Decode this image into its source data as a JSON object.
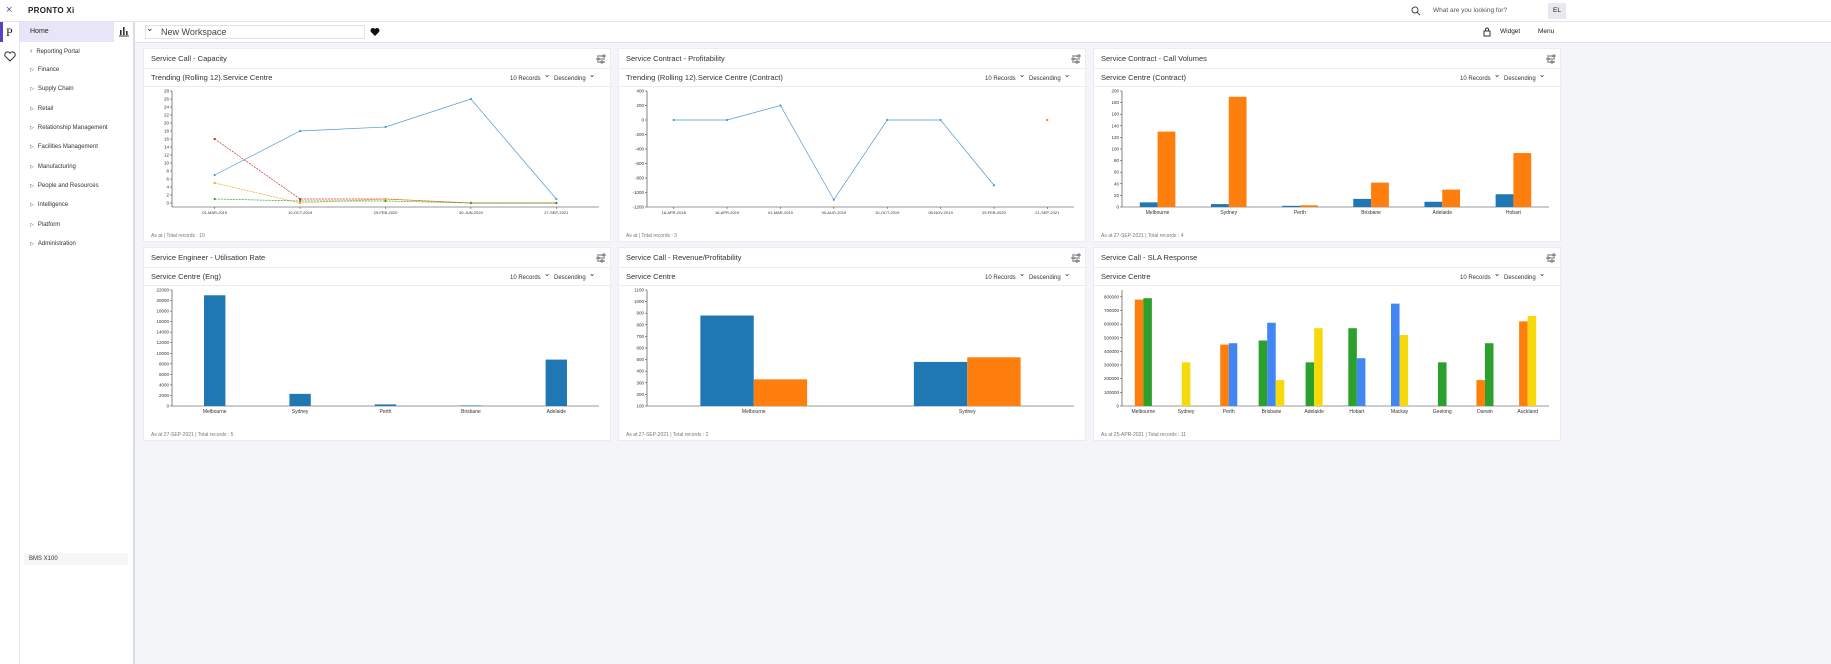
{
  "header": {
    "brand": "PRONTO Xi",
    "search_placeholder": "What are you looking for?",
    "user": "EL"
  },
  "sidebar": {
    "home": "Home",
    "items": [
      "Reporting Portal",
      "Finance",
      "Supply Chain",
      "Retail",
      "Relationship Management",
      "Facilities Management",
      "Manufacturing",
      "People and Resources",
      "Intelligence",
      "Platform",
      "Administration"
    ],
    "footer": "BMS X100"
  },
  "toolbar": {
    "workspace": "New Workspace",
    "widget": "Widget",
    "menu": "Menu"
  },
  "widgets": [
    {
      "title": "Service Call - Capacity",
      "subtitle": "Trending (Rolling 12).Service Centre",
      "records": "10 Records",
      "order": "Descending",
      "footer": "As at | Total records : 10",
      "chart": {
        "type": "line",
        "categories": [
          "01-MAR-2019",
          "10-OCT-2019",
          "29-FEB-2020",
          "30-JUN-2020",
          "27-SEP-2021"
        ],
        "series": [
          {
            "color": "#4a9bd4",
            "values": [
              7,
              18,
              19,
              26,
              1
            ]
          },
          {
            "color": "#d62728",
            "values": [
              16,
              1,
              1,
              0,
              0
            ]
          },
          {
            "color": "#ff9f1c",
            "values": [
              5,
              0,
              1,
              0,
              0
            ]
          },
          {
            "color": "#2ca02c",
            "values": [
              1,
              0.5,
              0.5,
              0,
              0
            ]
          }
        ],
        "ylim": [
          -1,
          28
        ],
        "yticks": [
          0,
          2,
          4,
          6,
          8,
          10,
          12,
          14,
          16,
          18,
          20,
          22,
          24,
          26,
          28
        ]
      }
    },
    {
      "title": "Service Contract - Profitability",
      "subtitle": "Trending (Rolling 12).Service Centre (Contract)",
      "records": "10 Records",
      "order": "Descending",
      "footer": "As at | Total records : 3",
      "chart": {
        "type": "line",
        "categories": [
          "16-APR-2018",
          "16-APR-2019",
          "01-MAR-2019",
          "30-AUG-2019",
          "10-OCT-2019",
          "08-NOV-2019",
          "29-FEB-2020",
          "21-SEP-2021"
        ],
        "series": [
          {
            "color": "#4a9bd4",
            "values": [
              0,
              0,
              200,
              -1100,
              0,
              0,
              -900,
              null
            ]
          },
          {
            "color": "#ff7f0e",
            "values": [
              null,
              null,
              null,
              null,
              null,
              null,
              null,
              0
            ]
          }
        ],
        "ylim": [
          -1200,
          400
        ],
        "yticks": [
          -1200,
          -1000,
          -800,
          -600,
          -400,
          -200,
          0,
          200,
          400
        ]
      }
    },
    {
      "title": "Service Contract - Call Volumes",
      "subtitle": "Service Centre (Contract)",
      "records": "10 Records",
      "order": "Descending",
      "footer": "As at 27-SEP-2021 | Total records : 4",
      "chart": {
        "type": "bar",
        "categories": [
          "Melbourne",
          "Sydney",
          "Perth",
          "Brisbane",
          "Adelaide",
          "Hobart"
        ],
        "series": [
          {
            "color": "#1f77b4",
            "values": [
              8,
              5,
              2,
              14,
              9,
              22
            ]
          },
          {
            "color": "#ff7f0e",
            "values": [
              130,
              190,
              3,
              42,
              30,
              93
            ]
          }
        ],
        "ylim": [
          0,
          200
        ],
        "yticks": [
          0,
          20,
          40,
          60,
          80,
          100,
          120,
          140,
          160,
          180,
          200
        ]
      }
    },
    {
      "title": "Service Engineer - Utilisation Rate",
      "subtitle": "Service Centre (Eng)",
      "records": "10 Records",
      "order": "Descending",
      "footer": "As at 27-SEP-2021 | Total records : 5",
      "chart": {
        "type": "bar",
        "categories": [
          "Melbourne",
          "Sydney",
          "Perth",
          "Brisbane",
          "Adelaide"
        ],
        "series": [
          {
            "color": "#1f77b4",
            "values": [
              21000,
              2300,
              300,
              100,
              8800
            ]
          }
        ],
        "ylim": [
          0,
          22000
        ],
        "yticks": [
          0,
          2000,
          4000,
          6000,
          8000,
          10000,
          12000,
          14000,
          16000,
          18000,
          20000,
          22000
        ]
      }
    },
    {
      "title": "Service Call - Revenue/Profitability",
      "subtitle": "Service Centre",
      "records": "10 Records",
      "order": "Descending",
      "footer": "As at 27-SEP-2021 | Total records : 2",
      "chart": {
        "type": "bar",
        "categories": [
          "Melbourne",
          "Sydney"
        ],
        "series": [
          {
            "color": "#1f77b4",
            "values": [
              880,
              480
            ]
          },
          {
            "color": "#ff7f0e",
            "values": [
              330,
              520
            ]
          }
        ],
        "ylim": [
          100,
          1100
        ],
        "yticks": [
          100,
          200,
          300,
          400,
          500,
          600,
          700,
          800,
          900,
          1000,
          1100
        ]
      }
    },
    {
      "title": "Service Call - SLA Response",
      "subtitle": "Service Centre",
      "records": "10 Records",
      "order": "Descending",
      "footer": "As at 25-APR-2021 | Total records : 11",
      "chart": {
        "type": "bar",
        "categories": [
          "Melbourne",
          "Sydney",
          "Perth",
          "Brisbane",
          "Adelaide",
          "Hobart",
          "Mackay",
          "Geelong",
          "Darwin",
          "Auckland"
        ],
        "series": [
          {
            "color": "#ff7f0e",
            "values": [
              780000,
              null,
              450000,
              null,
              null,
              null,
              null,
              null,
              190000,
              620000
            ]
          },
          {
            "color": "#2ca02c",
            "values": [
              790000,
              null,
              null,
              480000,
              320000,
              570000,
              null,
              320000,
              460000,
              null
            ]
          },
          {
            "color": "#4285f4",
            "values": [
              null,
              null,
              460000,
              610000,
              null,
              350000,
              750000,
              null,
              null,
              null
            ]
          },
          {
            "color": "#f5d90a",
            "values": [
              null,
              320000,
              null,
              190000,
              570000,
              null,
              520000,
              null,
              null,
              660000
            ]
          }
        ],
        "ylim": [
          0,
          850000
        ],
        "yticks": [
          0,
          100000,
          200000,
          300000,
          400000,
          500000,
          600000,
          700000,
          800000
        ]
      }
    }
  ]
}
